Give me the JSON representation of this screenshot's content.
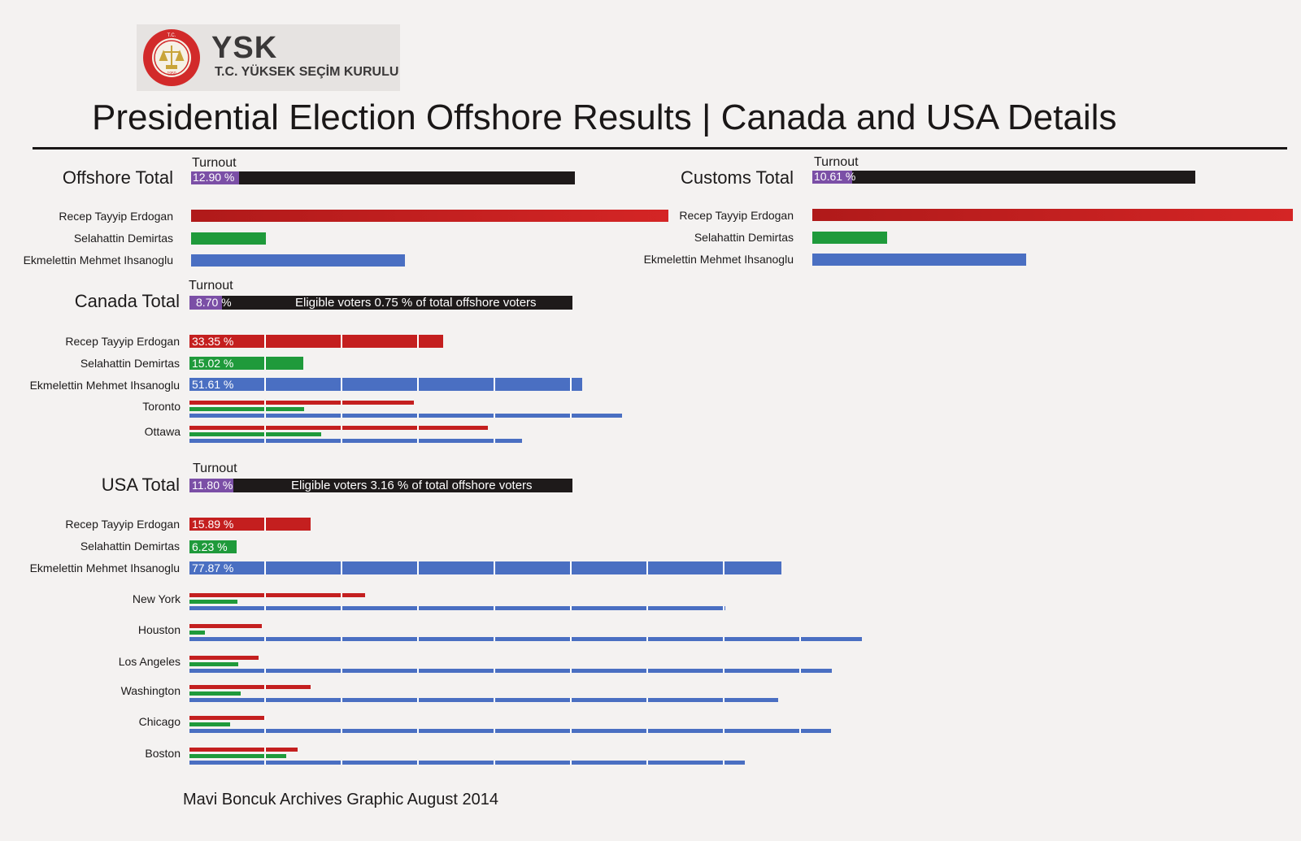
{
  "logo": {
    "wordmark": "YSK",
    "subtitle": "T.C. YÜKSEK SEÇİM KURULU",
    "seal_text": "T.C. YÜKSEK SEÇİM KURULU",
    "seal_top": "T.C.",
    "seal_year": "1950"
  },
  "title": "Presidential Election Offshore Results | Canada and USA Details",
  "credit": "Mavi Boncuk Archives Graphic August 2014",
  "colors": {
    "erdogan": "#c41f1f",
    "demirtas": "#1f9a3b",
    "ihsanoglu": "#4a6fc2",
    "turnout": "#7b4fa6",
    "dark": "#1e1a1a"
  },
  "candidates": [
    "Recep Tayyip Erdogan",
    "Selahattin Demirtas",
    "Ekmelettin Mehmet Ihsanoglu"
  ],
  "chart_data": [
    {
      "type": "bar",
      "title": "Offshore Total",
      "turnout_label": "Turnout",
      "turnout_text": "12.90 %",
      "turnout": 12.9,
      "categories": [
        "Recep Tayyip Erdogan",
        "Selahattin Demirtas",
        "Ekmelettin Mehmet Ihsanoglu"
      ],
      "values": [
        62.8,
        9.8,
        28.1
      ]
    },
    {
      "type": "bar",
      "title": "Customs Total",
      "turnout_label": "Turnout",
      "turnout_text": "10.61 %",
      "turnout": 10.61,
      "categories": [
        "Recep Tayyip Erdogan",
        "Selahattin Demirtas",
        "Ekmelettin Mehmet Ihsanoglu"
      ],
      "values": [
        63.2,
        9.8,
        28.1
      ]
    },
    {
      "type": "bar",
      "title": "Canada Total",
      "turnout_label": "Turnout",
      "turnout_text": "8.70 %",
      "turnout": 8.7,
      "note": "Eligible voters 0.75 % of total offshore voters",
      "categories": [
        "Recep Tayyip Erdogan",
        "Selahattin Demirtas",
        "Ekmelettin Mehmet Ihsanoglu"
      ],
      "values": [
        33.35,
        15.02,
        51.61
      ],
      "value_labels": [
        "33.35 %",
        "15.02 %",
        "51.61 %"
      ],
      "cities": [
        {
          "name": "Toronto",
          "values": [
            29.5,
            15.1,
            56.9
          ]
        },
        {
          "name": "Ottawa",
          "values": [
            39.2,
            17.3,
            43.7
          ]
        }
      ]
    },
    {
      "type": "bar",
      "title": "USA Total",
      "turnout_label": "Turnout",
      "turnout_text": "11.80 %",
      "turnout": 11.8,
      "note": "Eligible voters 3.16 % of total offshore voters",
      "categories": [
        "Recep Tayyip Erdogan",
        "Selahattin Demirtas",
        "Ekmelettin Mehmet Ihsanoglu"
      ],
      "values": [
        15.89,
        6.23,
        77.87
      ],
      "value_labels": [
        "15.89 %",
        "6.23 %",
        "77.87 %"
      ],
      "cities": [
        {
          "name": "New York",
          "values": [
            23.1,
            6.3,
            70.5
          ]
        },
        {
          "name": "Houston",
          "values": [
            9.5,
            2.0,
            88.4
          ]
        },
        {
          "name": "Los Angeles",
          "values": [
            9.1,
            6.4,
            84.5
          ]
        },
        {
          "name": "Washington",
          "values": [
            15.9,
            6.7,
            77.4
          ]
        },
        {
          "name": "Chicago",
          "values": [
            10.0,
            5.4,
            84.4
          ]
        },
        {
          "name": "Boston",
          "values": [
            14.2,
            12.7,
            73.0
          ]
        }
      ]
    }
  ]
}
